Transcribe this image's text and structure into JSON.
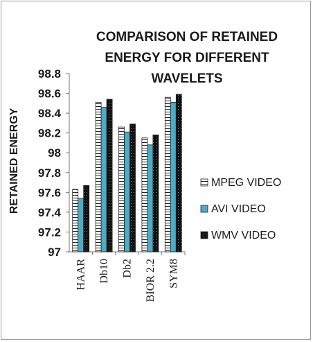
{
  "chart_data": {
    "type": "bar",
    "title_lines": [
      "COMPARISON OF RETAINED",
      "ENERGY FOR DIFFERENT",
      "WAVELETS"
    ],
    "xlabel": "",
    "ylabel": "RETAINED ENERGY",
    "ylim": [
      97,
      98.8
    ],
    "yticks": [
      "97",
      "97.2",
      "97.4",
      "97.6",
      "97.8",
      "98",
      "98.2",
      "98.4",
      "98.6",
      "98.8"
    ],
    "grid": false,
    "legend_position": "right",
    "categories": [
      "HAAR",
      "Db10",
      "Db2",
      "BIOR 2.2",
      "SYM8"
    ],
    "series": [
      {
        "name": "MPEG VIDEO",
        "values": [
          97.63,
          98.51,
          98.26,
          98.15,
          98.56
        ],
        "pattern": "hlines",
        "color": "#ffffff"
      },
      {
        "name": "AVI VIDEO",
        "values": [
          97.54,
          98.46,
          98.21,
          98.08,
          98.51
        ],
        "pattern": "solid",
        "color": "#4bacc6"
      },
      {
        "name": "WMV VIDEO",
        "values": [
          97.67,
          98.54,
          98.29,
          98.18,
          98.59
        ],
        "pattern": "dots",
        "color": "#111111"
      }
    ]
  }
}
